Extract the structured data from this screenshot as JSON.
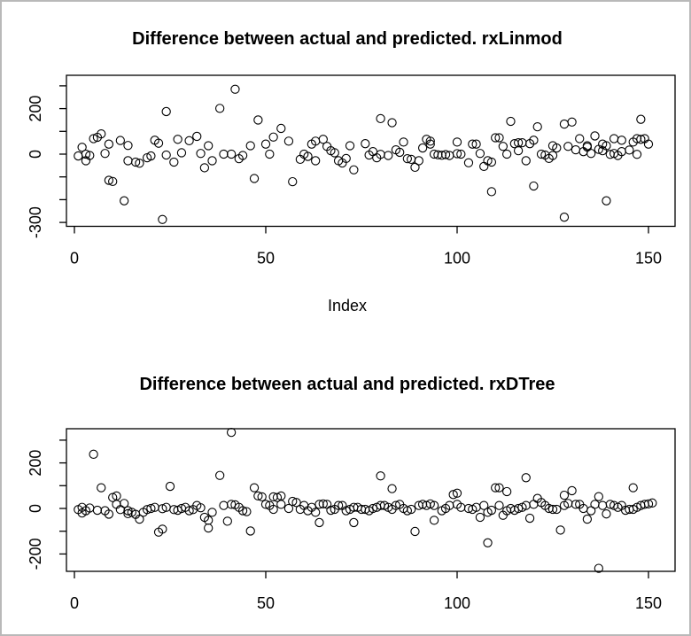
{
  "window": {
    "background": "#ffffff",
    "border_color": "#b9b9b9",
    "point_stroke": "#000000",
    "axis_color": "#000000"
  },
  "chart_data": [
    {
      "type": "scatter",
      "title": "Difference between actual and predicted. rxLinmod",
      "xlabel": "Index",
      "ylabel": "",
      "grid": false,
      "legend": "none",
      "marker": "open-circle",
      "xlim": [
        -2,
        157
      ],
      "ylim": [
        -320,
        320
      ],
      "x_axis": {
        "tick_values": [
          0,
          50,
          100,
          150
        ],
        "tick_labels": [
          "0",
          "50",
          "100",
          "150"
        ]
      },
      "y_axis": {
        "tick_values": [
          300,
          200,
          100,
          0,
          -100,
          -200,
          -300
        ],
        "tick_labels": [
          "",
          "200",
          "",
          "0",
          "",
          "",
          "-300"
        ]
      },
      "points": [
        [
          1,
          -8
        ],
        [
          2,
          30
        ],
        [
          3,
          0
        ],
        [
          3,
          -29
        ],
        [
          4,
          -6
        ],
        [
          5,
          68
        ],
        [
          6,
          74
        ],
        [
          7,
          89
        ],
        [
          8,
          3
        ],
        [
          9,
          -115
        ],
        [
          9,
          44
        ],
        [
          10,
          -120
        ],
        [
          12,
          60
        ],
        [
          13,
          -205
        ],
        [
          14,
          38
        ],
        [
          14,
          -29
        ],
        [
          16,
          -35
        ],
        [
          17,
          -40
        ],
        [
          19,
          -16
        ],
        [
          20,
          -8
        ],
        [
          21,
          61
        ],
        [
          22,
          48
        ],
        [
          23,
          -287
        ],
        [
          24,
          187
        ],
        [
          24,
          -4
        ],
        [
          26,
          -35
        ],
        [
          27,
          65
        ],
        [
          28,
          6
        ],
        [
          30,
          59
        ],
        [
          32,
          78
        ],
        [
          33,
          3
        ],
        [
          34,
          -60
        ],
        [
          35,
          37
        ],
        [
          36,
          -29
        ],
        [
          38,
          201
        ],
        [
          39,
          0
        ],
        [
          41,
          0
        ],
        [
          42,
          285
        ],
        [
          43,
          -20
        ],
        [
          44,
          -6
        ],
        [
          46,
          37
        ],
        [
          47,
          -107
        ],
        [
          48,
          150
        ],
        [
          50,
          44
        ],
        [
          51,
          0
        ],
        [
          52,
          75
        ],
        [
          54,
          113
        ],
        [
          56,
          57
        ],
        [
          57,
          -121
        ],
        [
          59,
          -23
        ],
        [
          60,
          0
        ],
        [
          61,
          -10
        ],
        [
          62,
          44
        ],
        [
          63,
          -29
        ],
        [
          63,
          57
        ],
        [
          65,
          65
        ],
        [
          66,
          34
        ],
        [
          67,
          15
        ],
        [
          68,
          6
        ],
        [
          69,
          -29
        ],
        [
          70,
          -39
        ],
        [
          71,
          -19
        ],
        [
          72,
          37
        ],
        [
          73,
          -69
        ],
        [
          76,
          46
        ],
        [
          77,
          -4
        ],
        [
          78,
          11
        ],
        [
          79,
          -16
        ],
        [
          80,
          156
        ],
        [
          80,
          -1
        ],
        [
          82,
          -6
        ],
        [
          83,
          138
        ],
        [
          84,
          19
        ],
        [
          85,
          8
        ],
        [
          86,
          53
        ],
        [
          87,
          -20
        ],
        [
          88,
          -23
        ],
        [
          89,
          -58
        ],
        [
          90,
          -29
        ],
        [
          91,
          27
        ],
        [
          92,
          65
        ],
        [
          93,
          57
        ],
        [
          93,
          44
        ],
        [
          94,
          0
        ],
        [
          95,
          -3
        ],
        [
          96,
          -5
        ],
        [
          97,
          -2
        ],
        [
          98,
          -6
        ],
        [
          100,
          53
        ],
        [
          100,
          2
        ],
        [
          101,
          0
        ],
        [
          103,
          -38
        ],
        [
          104,
          44
        ],
        [
          105,
          44
        ],
        [
          106,
          3
        ],
        [
          107,
          -54
        ],
        [
          108,
          -29
        ],
        [
          109,
          -165
        ],
        [
          109,
          -35
        ],
        [
          110,
          72
        ],
        [
          111,
          72
        ],
        [
          112,
          34
        ],
        [
          113,
          0
        ],
        [
          114,
          144
        ],
        [
          115,
          46
        ],
        [
          116,
          50
        ],
        [
          116,
          15
        ],
        [
          117,
          50
        ],
        [
          118,
          -29
        ],
        [
          119,
          46
        ],
        [
          120,
          -140
        ],
        [
          120,
          61
        ],
        [
          121,
          120
        ],
        [
          122,
          0
        ],
        [
          123,
          -4
        ],
        [
          124,
          -19
        ],
        [
          125,
          -6
        ],
        [
          125,
          37
        ],
        [
          126,
          27
        ],
        [
          128,
          -277
        ],
        [
          128,
          132
        ],
        [
          129,
          34
        ],
        [
          130,
          141
        ],
        [
          131,
          19
        ],
        [
          132,
          68
        ],
        [
          133,
          11
        ],
        [
          134,
          37
        ],
        [
          134,
          31
        ],
        [
          135,
          3
        ],
        [
          136,
          80
        ],
        [
          137,
          21
        ],
        [
          138,
          15
        ],
        [
          138,
          44
        ],
        [
          139,
          -205
        ],
        [
          139,
          37
        ],
        [
          140,
          -1
        ],
        [
          141,
          3
        ],
        [
          141,
          68
        ],
        [
          142,
          -6
        ],
        [
          143,
          61
        ],
        [
          143,
          11
        ],
        [
          145,
          18
        ],
        [
          146,
          53
        ],
        [
          147,
          68
        ],
        [
          147,
          -1
        ],
        [
          148,
          65
        ],
        [
          148,
          153
        ],
        [
          149,
          68
        ],
        [
          150,
          44
        ]
      ]
    },
    {
      "type": "scatter",
      "title": "Difference between actual and predicted. rxDTree",
      "xlabel": "",
      "ylabel": "",
      "grid": false,
      "legend": "none",
      "marker": "open-circle",
      "xlim": [
        -2,
        157
      ],
      "ylim": [
        -280,
        350
      ],
      "x_axis": {
        "tick_values": [
          0,
          50,
          100,
          150
        ],
        "tick_labels": [
          "0",
          "50",
          "100",
          "150"
        ]
      },
      "y_axis": {
        "tick_values": [
          300,
          200,
          100,
          0,
          -100,
          -200
        ],
        "tick_labels": [
          "",
          "200",
          "",
          "0",
          "",
          "-200"
        ]
      },
      "points": [
        [
          1,
          -5
        ],
        [
          2,
          -20
        ],
        [
          2,
          5
        ],
        [
          3,
          -10
        ],
        [
          4,
          2
        ],
        [
          5,
          238
        ],
        [
          6,
          -8
        ],
        [
          7,
          91
        ],
        [
          8,
          -10
        ],
        [
          9,
          -25
        ],
        [
          10,
          48
        ],
        [
          11,
          55
        ],
        [
          11,
          18
        ],
        [
          12,
          -5
        ],
        [
          13,
          22
        ],
        [
          14,
          -10
        ],
        [
          14,
          -23
        ],
        [
          15,
          -17
        ],
        [
          16,
          -26
        ],
        [
          17,
          -47
        ],
        [
          18,
          -17
        ],
        [
          19,
          -5
        ],
        [
          20,
          0
        ],
        [
          21,
          5
        ],
        [
          22,
          -104
        ],
        [
          23,
          -91
        ],
        [
          23,
          -1
        ],
        [
          24,
          5
        ],
        [
          25,
          97
        ],
        [
          26,
          -5
        ],
        [
          27,
          -8
        ],
        [
          28,
          0
        ],
        [
          29,
          5
        ],
        [
          30,
          -10
        ],
        [
          31,
          -5
        ],
        [
          32,
          13
        ],
        [
          33,
          3
        ],
        [
          34,
          -39
        ],
        [
          35,
          -52
        ],
        [
          35,
          -86
        ],
        [
          36,
          -17
        ],
        [
          38,
          145
        ],
        [
          39,
          13
        ],
        [
          40,
          -56
        ],
        [
          41,
          334
        ],
        [
          41,
          18
        ],
        [
          42,
          16
        ],
        [
          43,
          5
        ],
        [
          44,
          -10
        ],
        [
          45,
          -14
        ],
        [
          46,
          -99
        ],
        [
          47,
          91
        ],
        [
          48,
          55
        ],
        [
          49,
          51
        ],
        [
          50,
          18
        ],
        [
          51,
          13
        ],
        [
          52,
          51
        ],
        [
          52,
          -4
        ],
        [
          53,
          48
        ],
        [
          54,
          55
        ],
        [
          54,
          18
        ],
        [
          56,
          0
        ],
        [
          57,
          31
        ],
        [
          58,
          26
        ],
        [
          59,
          -4
        ],
        [
          60,
          13
        ],
        [
          61,
          -10
        ],
        [
          62,
          5
        ],
        [
          63,
          -17
        ],
        [
          64,
          -62
        ],
        [
          64,
          18
        ],
        [
          65,
          20
        ],
        [
          66,
          18
        ],
        [
          67,
          -8
        ],
        [
          68,
          -4
        ],
        [
          69,
          13
        ],
        [
          70,
          13
        ],
        [
          71,
          -10
        ],
        [
          72,
          -4
        ],
        [
          73,
          -62
        ],
        [
          73,
          5
        ],
        [
          74,
          5
        ],
        [
          75,
          -4
        ],
        [
          76,
          -4
        ],
        [
          77,
          -10
        ],
        [
          78,
          0
        ],
        [
          79,
          5
        ],
        [
          80,
          143
        ],
        [
          80,
          13
        ],
        [
          81,
          13
        ],
        [
          82,
          5
        ],
        [
          83,
          87
        ],
        [
          83,
          -4
        ],
        [
          84,
          13
        ],
        [
          85,
          18
        ],
        [
          86,
          0
        ],
        [
          87,
          -10
        ],
        [
          88,
          -4
        ],
        [
          89,
          -101
        ],
        [
          90,
          13
        ],
        [
          91,
          18
        ],
        [
          92,
          13
        ],
        [
          93,
          20
        ],
        [
          94,
          -52
        ],
        [
          94,
          13
        ],
        [
          96,
          -10
        ],
        [
          97,
          0
        ],
        [
          98,
          13
        ],
        [
          99,
          61
        ],
        [
          100,
          67
        ],
        [
          100,
          18
        ],
        [
          101,
          5
        ],
        [
          103,
          0
        ],
        [
          104,
          -4
        ],
        [
          105,
          5
        ],
        [
          106,
          -39
        ],
        [
          107,
          13
        ],
        [
          108,
          -151
        ],
        [
          108,
          -17
        ],
        [
          109,
          -8
        ],
        [
          110,
          91
        ],
        [
          111,
          91
        ],
        [
          111,
          13
        ],
        [
          112,
          -30
        ],
        [
          113,
          74
        ],
        [
          113,
          -10
        ],
        [
          114,
          0
        ],
        [
          115,
          -8
        ],
        [
          116,
          0
        ],
        [
          117,
          5
        ],
        [
          118,
          135
        ],
        [
          118,
          13
        ],
        [
          119,
          -43
        ],
        [
          120,
          18
        ],
        [
          121,
          44
        ],
        [
          122,
          26
        ],
        [
          123,
          13
        ],
        [
          124,
          0
        ],
        [
          125,
          -4
        ],
        [
          126,
          -4
        ],
        [
          127,
          -95
        ],
        [
          128,
          13
        ],
        [
          128,
          58
        ],
        [
          129,
          22
        ],
        [
          130,
          78
        ],
        [
          131,
          18
        ],
        [
          132,
          18
        ],
        [
          133,
          0
        ],
        [
          134,
          -47
        ],
        [
          135,
          -10
        ],
        [
          136,
          18
        ],
        [
          137,
          52
        ],
        [
          137,
          -263
        ],
        [
          138,
          13
        ],
        [
          139,
          -24
        ],
        [
          140,
          18
        ],
        [
          141,
          13
        ],
        [
          142,
          5
        ],
        [
          143,
          13
        ],
        [
          144,
          -8
        ],
        [
          145,
          -4
        ],
        [
          146,
          91
        ],
        [
          146,
          -4
        ],
        [
          147,
          5
        ],
        [
          148,
          13
        ],
        [
          149,
          18
        ],
        [
          150,
          20
        ],
        [
          151,
          24
        ]
      ]
    }
  ]
}
